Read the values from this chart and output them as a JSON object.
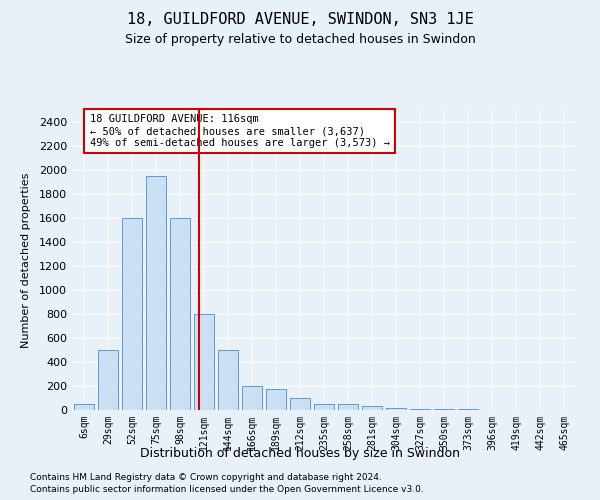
{
  "title": "18, GUILDFORD AVENUE, SWINDON, SN3 1JE",
  "subtitle": "Size of property relative to detached houses in Swindon",
  "xlabel": "Distribution of detached houses by size in Swindon",
  "ylabel": "Number of detached properties",
  "footnote1": "Contains HM Land Registry data © Crown copyright and database right 2024.",
  "footnote2": "Contains public sector information licensed under the Open Government Licence v3.0.",
  "bar_color": "#cce0f5",
  "bar_edge_color": "#5b9bd5",
  "bg_color": "#e8f0f8",
  "grid_color": "#ffffff",
  "marker_color": "#cc0000",
  "annotation_text": "18 GUILDFORD AVENUE: 116sqm\n← 50% of detached houses are smaller (3,637)\n49% of semi-detached houses are larger (3,573) →",
  "categories": [
    "6sqm",
    "29sqm",
    "52sqm",
    "75sqm",
    "98sqm",
    "121sqm",
    "144sqm",
    "166sqm",
    "189sqm",
    "212sqm",
    "235sqm",
    "258sqm",
    "281sqm",
    "304sqm",
    "327sqm",
    "350sqm",
    "373sqm",
    "396sqm",
    "419sqm",
    "442sqm",
    "465sqm"
  ],
  "values": [
    50,
    500,
    1600,
    1950,
    1600,
    800,
    500,
    200,
    175,
    100,
    50,
    50,
    30,
    20,
    10,
    5,
    5,
    2,
    2,
    2,
    2
  ],
  "marker_index": 4.78,
  "ylim": [
    0,
    2500
  ],
  "yticks": [
    0,
    200,
    400,
    600,
    800,
    1000,
    1200,
    1400,
    1600,
    1800,
    2000,
    2200,
    2400
  ]
}
